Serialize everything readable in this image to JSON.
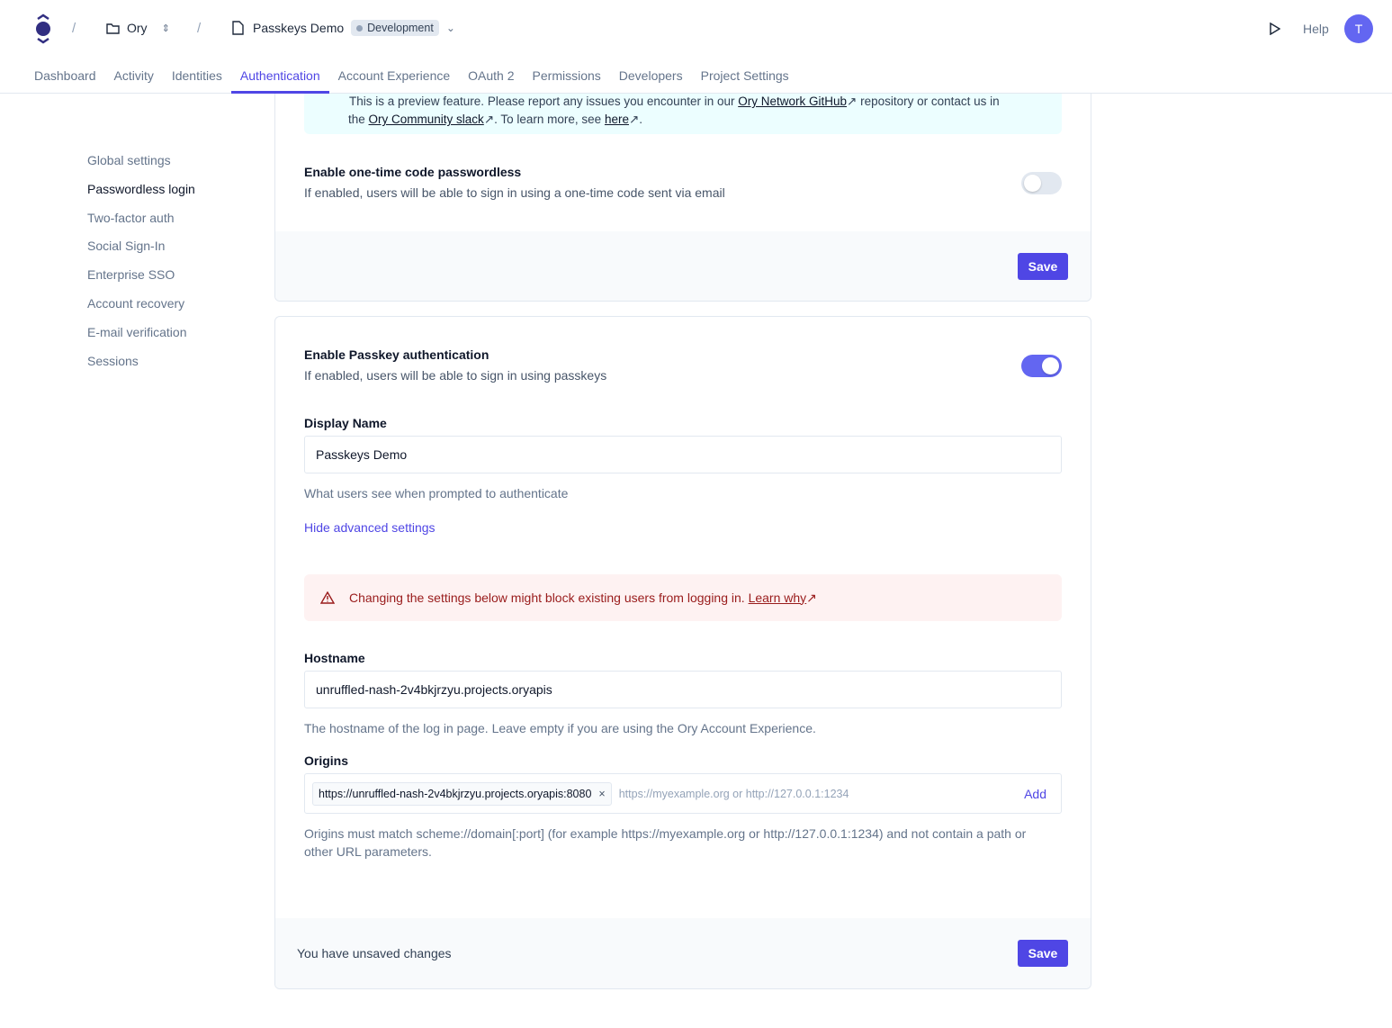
{
  "header": {
    "org": "Ory",
    "project": "Passkeys Demo",
    "env_badge": "Development",
    "help": "Help",
    "avatar_initial": "T",
    "tabs": [
      "Dashboard",
      "Activity",
      "Identities",
      "Authentication",
      "Account Experience",
      "OAuth 2",
      "Permissions",
      "Developers",
      "Project Settings"
    ],
    "active_tab": "Authentication"
  },
  "sidebar": {
    "items": [
      "Global settings",
      "Passwordless login",
      "Two-factor auth",
      "Social Sign-In",
      "Enterprise SSO",
      "Account recovery",
      "E-mail verification",
      "Sessions"
    ],
    "active": "Passwordless login"
  },
  "preview_notice": {
    "line1_pre": "This is a preview feature. Please report any issues you encounter in our ",
    "github_link": "Ory Network GitHub",
    "line1_post": " repository or contact us in",
    "line2_pre": "the ",
    "slack_link": "Ory Community slack",
    "line2_mid": ". To learn more, see ",
    "here_link": "here",
    "line2_post": "."
  },
  "otp": {
    "title": "Enable one-time code passwordless",
    "description": "If enabled, users will be able to sign in using a one-time code sent via email",
    "enabled": false,
    "save": "Save"
  },
  "passkey": {
    "title": "Enable Passkey authentication",
    "description": "If enabled, users will be able to sign in using passkeys",
    "enabled": true,
    "display_name_label": "Display Name",
    "display_name_value": "Passkeys Demo",
    "display_name_help": "What users see when prompted to authenticate",
    "advanced_toggle": "Hide advanced settings",
    "warning": "Changing the settings below might block existing users from logging in.",
    "warning_link": "Learn why",
    "hostname_label": "Hostname",
    "hostname_value": "unruffled-nash-2v4bkjrzyu.projects.oryapis",
    "hostname_help": "The hostname of the log in page. Leave empty if you are using the Ory Account Experience.",
    "origins_label": "Origins",
    "origins": [
      "https://unruffled-nash-2v4bkjrzyu.projects.oryapis:8080"
    ],
    "origins_placeholder": "https://myexample.org or http://127.0.0.1:1234",
    "add": "Add",
    "origins_help": "Origins must match scheme://domain[:port] (for example https://myexample.org or http://127.0.0.1:1234) and not contain a path or other URL parameters.",
    "unsaved": "You have unsaved changes",
    "save": "Save"
  },
  "colors": {
    "accent": "#4f46e5",
    "warning_bg": "#fef2f2",
    "info_bg": "#ecfeff"
  }
}
